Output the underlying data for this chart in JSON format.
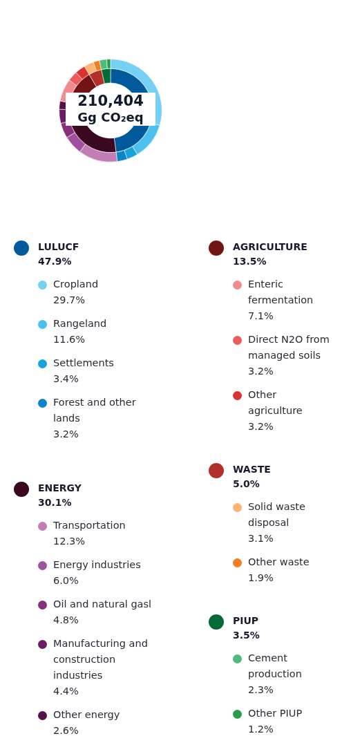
{
  "chart_data": [
    {
      "type": "donut",
      "title": "210,404",
      "subtitle": "Gg CO₂eq",
      "legend": "bottom",
      "categories": [
        "LULUCF",
        "ENERGY",
        "AGRICULTURE",
        "WASTE",
        "PIUP"
      ],
      "values": [
        47.9,
        30.1,
        13.5,
        5.0,
        3.5
      ],
      "value_labels": [
        "47.9%",
        "30.1%",
        "13.5%",
        "5.0%",
        "3.5%"
      ],
      "colors": [
        "#005a9c",
        "#3a0820",
        "#731414",
        "#b3302a",
        "#006b35"
      ]
    },
    {
      "type": "donut",
      "legend": "bottom",
      "categories": [
        "Cropland",
        "Rangeland",
        "Settlements",
        "Forest and other lands",
        "Transportation",
        "Energy industries",
        "Oil and natural gasl",
        "Manufacturing and construction industries",
        "Other energy",
        "Enteric fermentation",
        "Direct N2O from managed soils",
        "Other agriculture",
        "Solid waste disposal",
        "Other waste",
        "Cement production",
        "Other PIUP"
      ],
      "values": [
        29.7,
        11.6,
        3.4,
        3.2,
        12.3,
        6.0,
        4.8,
        4.4,
        2.6,
        7.1,
        3.2,
        3.2,
        3.1,
        1.9,
        2.3,
        1.2
      ],
      "value_labels": [
        "29.7%",
        "11.6%",
        "3.4%",
        "3.2%",
        "12.3%",
        "6.0%",
        "4.8%",
        "4.4%",
        "2.6%",
        "7.1%",
        "3.2%",
        "3.2%",
        "3.1%",
        "1.9%",
        "2.3%",
        "1.2%"
      ],
      "colors": [
        "#74d0f5",
        "#4cc0ee",
        "#17a3dc",
        "#0a85c9",
        "#c27db5",
        "#a1509f",
        "#86307c",
        "#6a1d65",
        "#561049",
        "#f28b8e",
        "#ee5b5b",
        "#dc3232",
        "#fbb475",
        "#f47d20",
        "#4dbb7a",
        "#2a9d4a"
      ]
    }
  ]
}
